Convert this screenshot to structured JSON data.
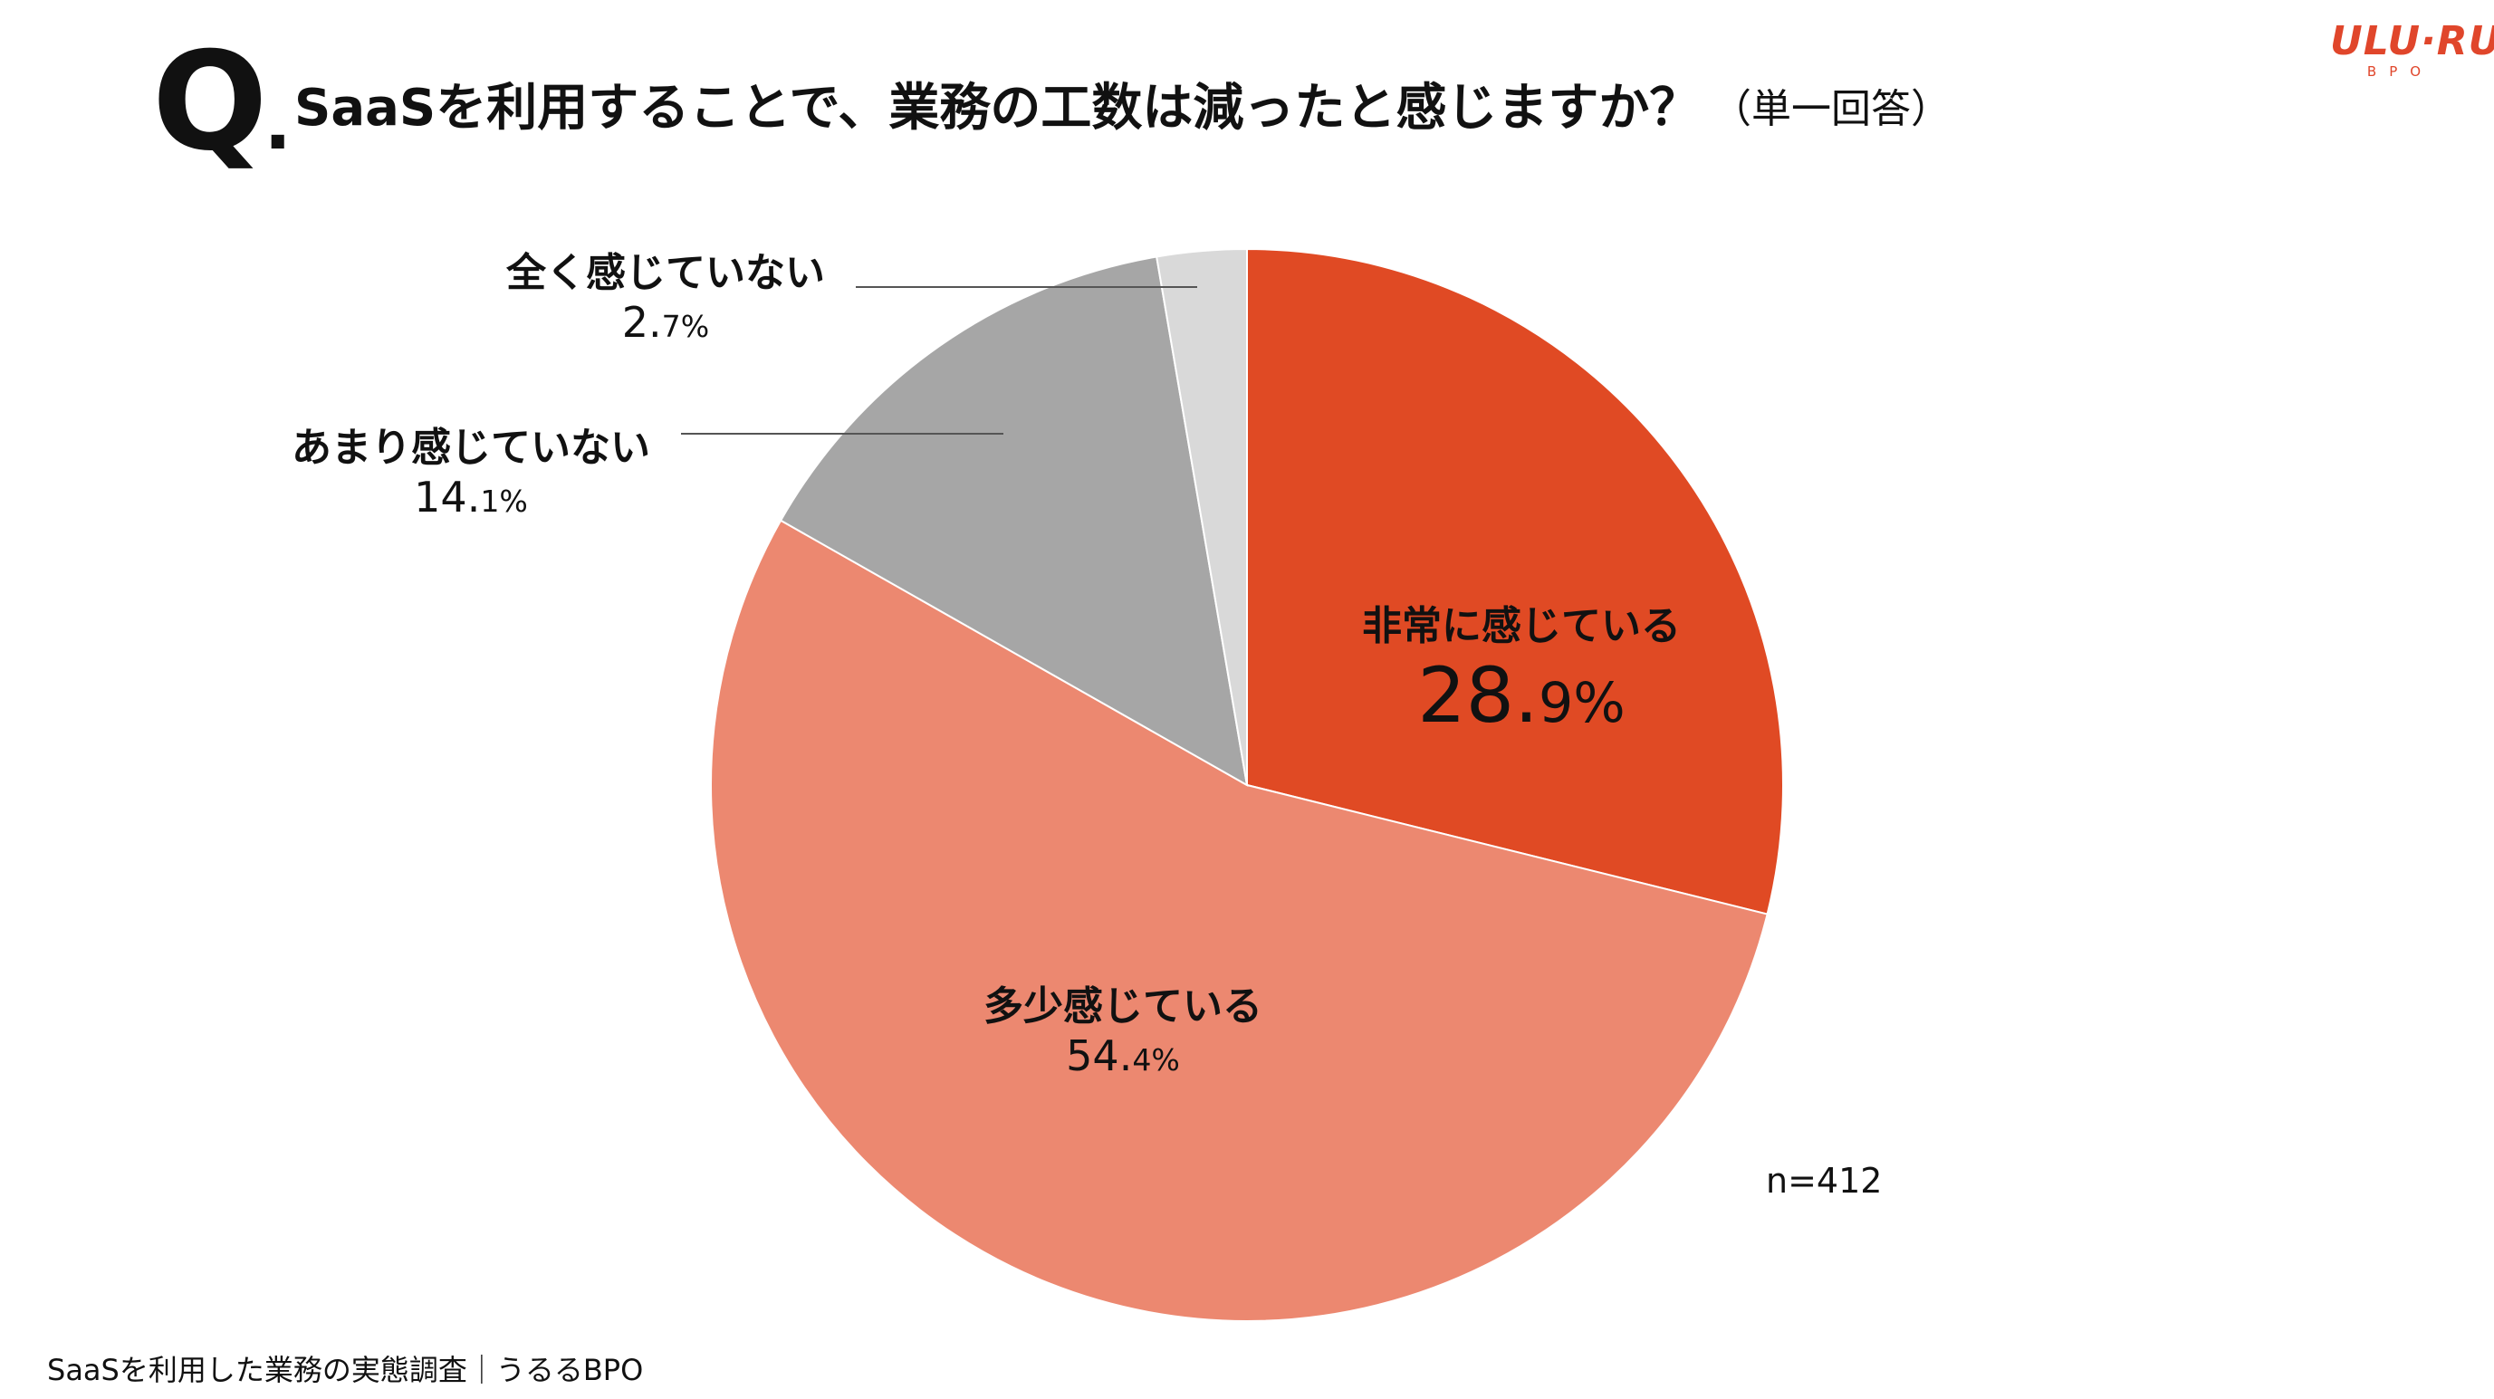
{
  "header": {
    "q_letter": "Q",
    "q_dot": ".",
    "question": "SaaSを利用することで、業務の工数は減ったと感じますか？",
    "note": "（単一回答）"
  },
  "logo": {
    "main": "ULU·RU",
    "sub": "BPO"
  },
  "colors": {
    "very": "#e04a24",
    "somewhat": "#ec8870",
    "not_much": "#a6a6a6",
    "not_at_all": "#d9d9d9",
    "brand": "#e0462b"
  },
  "chart_data": {
    "type": "pie",
    "slices": [
      {
        "label": "非常に感じている",
        "value": 28.9,
        "int": "28.",
        "dec": "9%"
      },
      {
        "label": "多少感じている",
        "value": 54.4,
        "int": "54.",
        "dec": "4%"
      },
      {
        "label": "あまり感じていない",
        "value": 14.1,
        "int": "14.",
        "dec": "1%"
      },
      {
        "label": "全く感じていない",
        "value": 2.7,
        "int": "2.",
        "dec": "7%"
      }
    ],
    "start_angle": "12 o'clock",
    "direction": "clockwise",
    "sample_size": "n=412"
  },
  "footer": "SaaSを利用した業務の実態調査｜うるるBPO"
}
